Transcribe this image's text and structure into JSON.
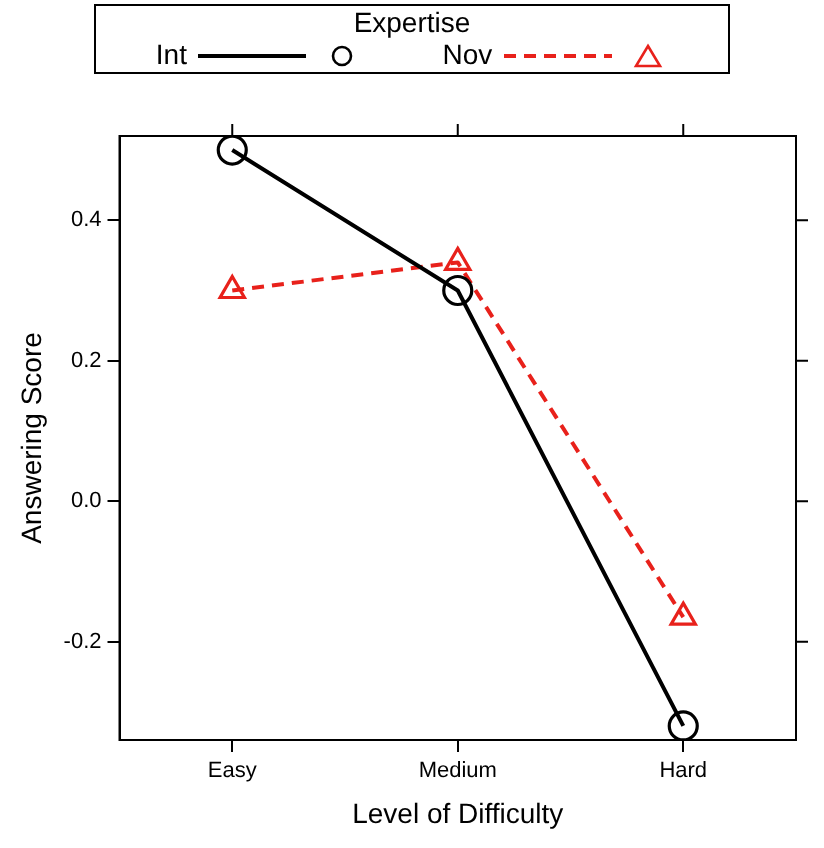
{
  "chart_data": {
    "type": "line",
    "xlabel": "Level of Difficulty",
    "ylabel": "Answering Score",
    "legend_title": "Expertise",
    "legend": "top",
    "categories": [
      "Easy",
      "Medium",
      "Hard"
    ],
    "series": [
      {
        "name": "Int",
        "color": "#000000",
        "values": [
          0.5,
          0.3,
          -0.32
        ],
        "marker": "circle",
        "line_style": "solid"
      },
      {
        "name": "Nov",
        "color": "#e8211b",
        "values": [
          0.3,
          0.34,
          -0.165
        ],
        "marker": "triangle",
        "line_style": "dashed"
      }
    ],
    "ylim": [
      -0.34,
      0.52
    ],
    "yticks": [
      {
        "value": -0.2,
        "label": "-0.2"
      },
      {
        "value": 0,
        "label": "0.0"
      },
      {
        "value": 0.2,
        "label": "0.2"
      },
      {
        "value": 0.4,
        "label": "0.4"
      }
    ],
    "grid": false
  }
}
